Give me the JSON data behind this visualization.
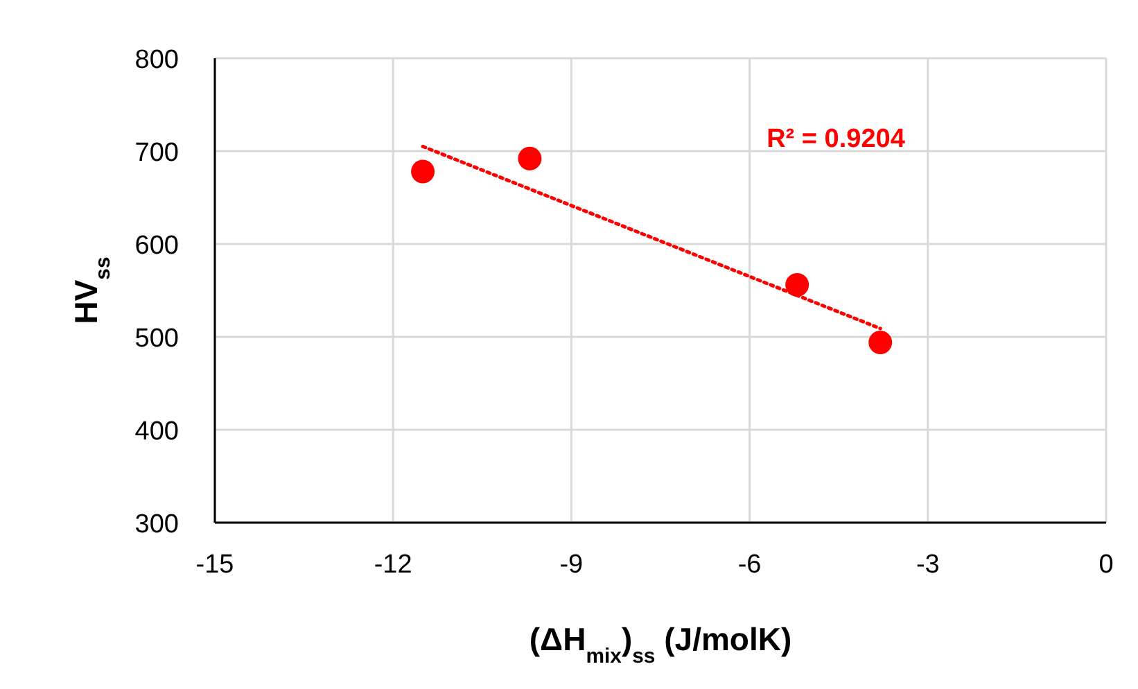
{
  "chart_data": {
    "type": "scatter",
    "xlabel": "(ΔH$_{mix}$)$_{ss}$ (J/molK)",
    "ylabel": "HV$_{ss}$",
    "xlim": [
      -15,
      0
    ],
    "xticks": [
      -15,
      -12,
      -9,
      -6,
      -3,
      0
    ],
    "ylim": [
      300,
      800
    ],
    "yticks": [
      300,
      400,
      500,
      600,
      700,
      800
    ],
    "grid": true,
    "series": [
      {
        "color": "#ff0000",
        "marker": "circle",
        "x": [
          -11.5,
          -9.7,
          -5.2,
          -3.8
        ],
        "values": [
          678,
          692,
          556,
          494
        ]
      },
      {
        "type": "line",
        "color": "#ff0000",
        "line_style": "dotted",
        "x": [
          -11.5,
          -3.8
        ],
        "values": [
          705,
          509
        ]
      }
    ],
    "annotations": [
      "R² = 0.9204"
    ]
  }
}
